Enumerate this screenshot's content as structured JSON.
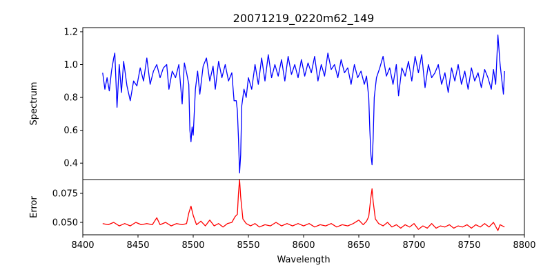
{
  "chart_data": [
    {
      "type": "line",
      "title": "20071219_0220m62_149",
      "xlabel": "",
      "ylabel": "Spectrum",
      "xlim": [
        8400,
        8800
      ],
      "ylim": [
        0.3,
        1.225
      ],
      "yticks": [
        0.4,
        0.6,
        0.8,
        1.0,
        1.2
      ],
      "ytick_labels": [
        "0.4",
        "0.6",
        "0.8",
        "1.0",
        "1.2"
      ],
      "color": "#0000ff",
      "grid": false,
      "series": [
        {
          "name": "Spectrum",
          "x": [
            8418,
            8420,
            8422,
            8424,
            8426,
            8428,
            8429,
            8431,
            8433,
            8435,
            8437,
            8440,
            8443,
            8446,
            8449,
            8452,
            8455,
            8458,
            8461,
            8464,
            8467,
            8470,
            8473,
            8476,
            8478,
            8481,
            8484,
            8487,
            8490,
            8492,
            8494,
            8496,
            8497,
            8498,
            8499,
            8500,
            8502,
            8504,
            8506,
            8509,
            8512,
            8515,
            8518,
            8520,
            8523,
            8526,
            8529,
            8532,
            8535,
            8537,
            8539,
            8540,
            8541,
            8542,
            8543,
            8544,
            8546,
            8548,
            8550,
            8553,
            8556,
            8559,
            8562,
            8565,
            8568,
            8571,
            8574,
            8577,
            8580,
            8583,
            8586,
            8589,
            8592,
            8595,
            8598,
            8601,
            8604,
            8607,
            8610,
            8613,
            8616,
            8619,
            8622,
            8625,
            8628,
            8631,
            8634,
            8637,
            8640,
            8643,
            8646,
            8649,
            8652,
            8655,
            8657,
            8659,
            8660,
            8661,
            8662,
            8663,
            8664,
            8666,
            8669,
            8672,
            8675,
            8678,
            8681,
            8684,
            8686,
            8689,
            8692,
            8695,
            8698,
            8701,
            8704,
            8707,
            8710,
            8713,
            8716,
            8719,
            8722,
            8725,
            8728,
            8731,
            8734,
            8737,
            8740,
            8743,
            8746,
            8749,
            8752,
            8755,
            8758,
            8761,
            8764,
            8767,
            8770,
            8772,
            8774,
            8776,
            8778,
            8780,
            8781,
            8782
          ],
          "y": [
            0.95,
            0.85,
            0.92,
            0.84,
            0.96,
            1.04,
            1.07,
            0.74,
            1.0,
            0.83,
            1.02,
            0.87,
            0.78,
            0.9,
            0.87,
            0.98,
            0.9,
            1.04,
            0.88,
            0.96,
            1.0,
            0.92,
            0.98,
            1.0,
            0.85,
            0.96,
            0.92,
            1.0,
            0.76,
            1.01,
            0.95,
            0.88,
            0.6,
            0.53,
            0.62,
            0.57,
            0.85,
            0.96,
            0.82,
            0.99,
            1.04,
            0.9,
            0.99,
            0.85,
            1.02,
            0.92,
            1.0,
            0.9,
            0.95,
            0.78,
            0.78,
            0.72,
            0.55,
            0.34,
            0.45,
            0.75,
            0.85,
            0.8,
            0.92,
            0.85,
            1.0,
            0.88,
            1.04,
            0.9,
            1.06,
            0.92,
            1.0,
            0.93,
            1.03,
            0.9,
            1.05,
            0.94,
            1.0,
            0.92,
            1.03,
            0.93,
            1.01,
            0.95,
            1.05,
            0.9,
            1.0,
            0.93,
            1.07,
            0.97,
            1.0,
            0.92,
            1.03,
            0.95,
            0.98,
            0.88,
            1.0,
            0.92,
            0.96,
            0.88,
            0.93,
            0.8,
            0.6,
            0.45,
            0.39,
            0.55,
            0.8,
            0.92,
            0.98,
            1.05,
            0.93,
            0.98,
            0.88,
            1.0,
            0.81,
            0.98,
            0.93,
            1.02,
            0.9,
            1.05,
            0.95,
            1.06,
            0.86,
            1.0,
            0.92,
            0.95,
            1.0,
            0.88,
            0.95,
            0.83,
            0.98,
            0.9,
            1.0,
            0.88,
            0.96,
            0.85,
            0.98,
            0.9,
            0.95,
            0.86,
            0.97,
            0.92,
            0.85,
            0.97,
            0.88,
            1.18,
            1.0,
            0.88,
            0.82,
            0.96
          ]
        }
      ]
    },
    {
      "type": "line",
      "xlabel": "Wavelength",
      "ylabel": "Error",
      "xlim": [
        8400,
        8800
      ],
      "ylim": [
        0.0393,
        0.0869
      ],
      "xticks": [
        8400,
        8450,
        8500,
        8550,
        8600,
        8650,
        8700,
        8750,
        8800
      ],
      "xtick_labels": [
        "8400",
        "8450",
        "8500",
        "8550",
        "8600",
        "8650",
        "8700",
        "8750",
        "8800"
      ],
      "yticks": [
        0.05,
        0.075
      ],
      "ytick_labels": [
        "0.050",
        "0.075"
      ],
      "color": "#ff0000",
      "grid": false,
      "series": [
        {
          "name": "Error",
          "x": [
            8418,
            8423,
            8428,
            8433,
            8438,
            8443,
            8448,
            8453,
            8458,
            8463,
            8467,
            8470,
            8475,
            8480,
            8485,
            8490,
            8494,
            8496,
            8498,
            8500,
            8503,
            8507,
            8511,
            8515,
            8519,
            8523,
            8527,
            8531,
            8535,
            8538,
            8540,
            8541,
            8542,
            8543,
            8545,
            8548,
            8552,
            8556,
            8560,
            8565,
            8570,
            8575,
            8580,
            8585,
            8590,
            8595,
            8600,
            8605,
            8610,
            8615,
            8620,
            8625,
            8630,
            8635,
            8640,
            8645,
            8650,
            8654,
            8657,
            8659,
            8661,
            8662,
            8663,
            8665,
            8668,
            8672,
            8676,
            8680,
            8684,
            8688,
            8692,
            8696,
            8700,
            8704,
            8708,
            8712,
            8716,
            8720,
            8724,
            8728,
            8732,
            8736,
            8740,
            8744,
            8748,
            8752,
            8756,
            8760,
            8764,
            8768,
            8772,
            8776,
            8778,
            8782
          ],
          "y": [
            0.049,
            0.048,
            0.05,
            0.047,
            0.049,
            0.047,
            0.05,
            0.048,
            0.049,
            0.048,
            0.054,
            0.048,
            0.05,
            0.047,
            0.049,
            0.048,
            0.049,
            0.058,
            0.064,
            0.056,
            0.048,
            0.051,
            0.047,
            0.052,
            0.047,
            0.049,
            0.046,
            0.049,
            0.05,
            0.055,
            0.057,
            0.075,
            0.087,
            0.072,
            0.053,
            0.049,
            0.047,
            0.049,
            0.046,
            0.048,
            0.047,
            0.05,
            0.047,
            0.049,
            0.047,
            0.049,
            0.047,
            0.049,
            0.046,
            0.048,
            0.047,
            0.049,
            0.046,
            0.048,
            0.047,
            0.049,
            0.052,
            0.048,
            0.051,
            0.055,
            0.072,
            0.079,
            0.068,
            0.053,
            0.049,
            0.047,
            0.05,
            0.046,
            0.048,
            0.045,
            0.048,
            0.046,
            0.049,
            0.044,
            0.047,
            0.045,
            0.049,
            0.045,
            0.047,
            0.046,
            0.048,
            0.045,
            0.047,
            0.046,
            0.048,
            0.045,
            0.048,
            0.046,
            0.049,
            0.046,
            0.05,
            0.043,
            0.048,
            0.046
          ]
        }
      ]
    }
  ]
}
